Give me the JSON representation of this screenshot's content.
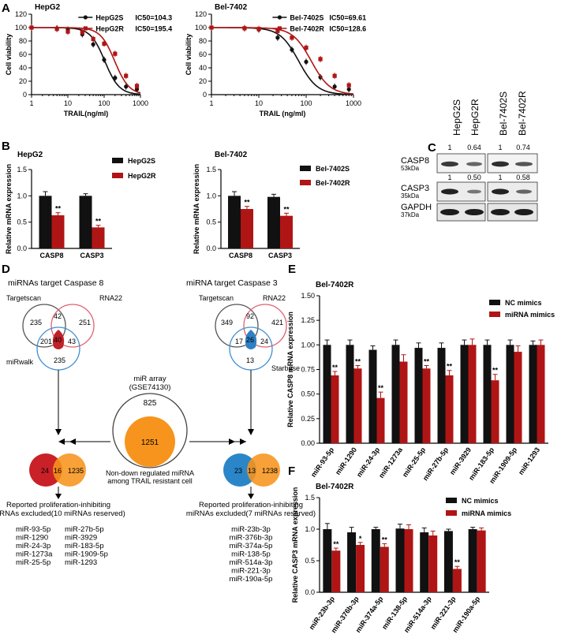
{
  "panels": {
    "A": "A",
    "B": "B",
    "C": "C",
    "D": "D",
    "E": "E",
    "F": "F"
  },
  "colors": {
    "black": "#111111",
    "red": "#b01515",
    "venn_red": "#c0202a",
    "venn_blue": "#2f7fc4",
    "orange": "#f7941d",
    "dark_red_venn": "#c92127",
    "blue_venn": "#2a86c8"
  },
  "chart_data": [
    {
      "id": "A1",
      "type": "line",
      "title": "HepG2",
      "xlabel": "TRAIL(ng/ml)",
      "ylabel": "Cell viability",
      "xscale": "log",
      "xlim": [
        1,
        1000
      ],
      "ylim": [
        0,
        120
      ],
      "xticks": [
        "1",
        "10",
        "100",
        "1000"
      ],
      "yticks": [
        "0",
        "20",
        "40",
        "60",
        "80",
        "100",
        "120"
      ],
      "series": [
        {
          "name": "HepG2S",
          "label": "IC50=104.3",
          "ic50": 104.3,
          "color": "#111111",
          "x": [
            1,
            5,
            10,
            25,
            50,
            100,
            200,
            400,
            800
          ],
          "y": [
            100,
            99,
            97,
            90,
            75,
            52,
            25,
            12,
            8
          ]
        },
        {
          "name": "HepG2R",
          "label": "IC50=195.4",
          "ic50": 195.4,
          "color": "#b01515",
          "x": [
            1,
            5,
            10,
            25,
            50,
            100,
            200,
            400,
            800
          ],
          "y": [
            100,
            98,
            94,
            93,
            83,
            76,
            61,
            28,
            13
          ]
        }
      ]
    },
    {
      "id": "A2",
      "type": "line",
      "title": "Bel-7402",
      "xlabel": "TRAIL (ng/ml)",
      "ylabel": "Cell viability",
      "xscale": "log",
      "xlim": [
        1,
        1000
      ],
      "ylim": [
        0,
        120
      ],
      "xticks": [
        "1",
        "10",
        "100",
        "1000"
      ],
      "yticks": [
        "0",
        "20",
        "40",
        "60",
        "80",
        "100",
        "120"
      ],
      "series": [
        {
          "name": "Bel-7402S",
          "label": "IC50=69.61",
          "ic50": 69.61,
          "color": "#111111",
          "x": [
            1,
            5,
            10,
            25,
            50,
            100,
            200,
            400,
            800
          ],
          "y": [
            100,
            99,
            97,
            85,
            67,
            49,
            26,
            12,
            8
          ]
        },
        {
          "name": "Bel-7402R",
          "label": "IC50=128.6",
          "ic50": 128.6,
          "color": "#b01515",
          "x": [
            1,
            5,
            10,
            25,
            50,
            100,
            200,
            400,
            800
          ],
          "y": [
            100,
            99,
            98,
            95,
            85,
            70,
            53,
            28,
            14
          ]
        }
      ]
    },
    {
      "id": "B1",
      "type": "bar",
      "title": "HepG2",
      "ylabel": "Relative mRNA expression",
      "ylim": [
        0,
        1.5
      ],
      "yticks": [
        "0.0",
        "0.5",
        "1.0",
        "1.5"
      ],
      "categories": [
        "CASP8",
        "CASP3"
      ],
      "series": [
        {
          "name": "HepG2S",
          "color": "#111111",
          "values": [
            1.0,
            1.0
          ],
          "err": [
            0.08,
            0.04
          ]
        },
        {
          "name": "HepG2R",
          "color": "#b01515",
          "values": [
            0.63,
            0.4
          ],
          "err": [
            0.05,
            0.04
          ]
        }
      ],
      "sig": [
        "**",
        "**"
      ]
    },
    {
      "id": "B2",
      "type": "bar",
      "title": "Bel-7402",
      "ylabel": "Relative mRNA expression",
      "ylim": [
        0,
        1.5
      ],
      "yticks": [
        "0.0",
        "0.5",
        "1.0",
        "1.5"
      ],
      "categories": [
        "CASP8",
        "CASP3"
      ],
      "series": [
        {
          "name": "Bel-7402S",
          "color": "#111111",
          "values": [
            1.0,
            0.98
          ],
          "err": [
            0.08,
            0.05
          ]
        },
        {
          "name": "Bel-7402R",
          "color": "#b01515",
          "values": [
            0.75,
            0.62
          ],
          "err": [
            0.05,
            0.05
          ]
        }
      ],
      "sig": [
        "**",
        "**"
      ]
    },
    {
      "id": "E",
      "type": "bar",
      "title": "Bel-7402R",
      "ylabel": "Relative CASP8 mRNA expression",
      "ylim": [
        0,
        1.5
      ],
      "yticks": [
        "0.00",
        "0.25",
        "0.50",
        "0.75",
        "1.00",
        "1.25",
        "1.50"
      ],
      "categories": [
        "miR-93-5p",
        "miR-1290",
        "miR-24-3p",
        "miR-1273a",
        "miR-25-5p",
        "miR-27b-5p",
        "miR-3929",
        "miR-183-5p",
        "miR-1909-5p",
        "miR-1293"
      ],
      "series": [
        {
          "name": "NC mimics",
          "color": "#111111",
          "values": [
            1.0,
            1.0,
            0.95,
            1.0,
            0.97,
            0.97,
            1.0,
            1.0,
            1.0,
            1.0
          ],
          "err": [
            0.05,
            0.05,
            0.04,
            0.05,
            0.05,
            0.05,
            0.05,
            0.05,
            0.05,
            0.04
          ]
        },
        {
          "name": "miRNA mimics",
          "color": "#b01515",
          "values": [
            0.69,
            0.76,
            0.46,
            0.83,
            0.76,
            0.69,
            1.0,
            0.64,
            0.93,
            1.0
          ],
          "err": [
            0.04,
            0.03,
            0.06,
            0.07,
            0.03,
            0.05,
            0.06,
            0.06,
            0.06,
            0.05
          ]
        }
      ],
      "sig": [
        "**",
        "**",
        "**",
        "",
        "**",
        "**",
        "",
        "**",
        "",
        ""
      ]
    },
    {
      "id": "F",
      "type": "bar",
      "title": "Bel-7402R",
      "ylabel": "Relative CASP3 mRNA expression",
      "ylim": [
        0,
        1.5
      ],
      "yticks": [
        "0.0",
        "0.5",
        "1.0",
        "1.5"
      ],
      "categories": [
        "miR-23b-3p",
        "miR-376b-3p",
        "miR-374a-5p",
        "miR-138-5p",
        "miR-514a-3p",
        "miR-221-3p",
        "miR-190a-5p"
      ],
      "series": [
        {
          "name": "NC mimics",
          "color": "#111111",
          "values": [
            1.0,
            0.95,
            1.0,
            1.01,
            0.95,
            0.97,
            1.0
          ],
          "err": [
            0.09,
            0.08,
            0.03,
            0.07,
            0.07,
            0.03,
            0.03
          ]
        },
        {
          "name": "miRNA mimics",
          "color": "#b01515",
          "values": [
            0.66,
            0.75,
            0.72,
            1.0,
            0.9,
            0.37,
            0.98
          ],
          "err": [
            0.04,
            0.04,
            0.05,
            0.07,
            0.07,
            0.04,
            0.04
          ]
        }
      ],
      "sig": [
        "**",
        "*",
        "**",
        "",
        "",
        "**",
        ""
      ]
    }
  ],
  "blot": {
    "cols": [
      "HepG2S",
      "HepG2R",
      "Bel-7402S",
      "Bel-7402R"
    ],
    "casp8_ratio": [
      "1",
      "0.64",
      "1",
      "0.74"
    ],
    "casp3_ratio": [
      "1",
      "0.50",
      "1",
      "0.58"
    ],
    "rows": [
      {
        "name": "CASP8",
        "kda": "53kDa"
      },
      {
        "name": "CASP3",
        "kda": "35kDa"
      },
      {
        "name": "GAPDH",
        "kda": "37kDa"
      }
    ]
  },
  "venn": {
    "left_title": "miRNAs target Caspase 8",
    "right_title": "miRNA target Caspase 3",
    "l": {
      "targetscan": "Targetscan",
      "rna22": "RNA22",
      "mirwalk": "miRwalk",
      "n_ts": "235",
      "n_ts_rna": "42",
      "n_rna": "251",
      "n_ts_mw": "201",
      "n_all": "40",
      "n_rna_mw": "43",
      "n_mw": "235"
    },
    "r": {
      "targetscan": "Targetscan",
      "rna22": "RNA22",
      "starbase": "Starbase",
      "n_ts": "349",
      "n_ts_rna": "92",
      "n_rna": "421",
      "n_ts_sb": "17",
      "n_all": "26",
      "n_rna_sb": "24",
      "n_sb": "13"
    },
    "array_title": "miR array",
    "array_sub": "(GSE74130)",
    "array_outer": "825",
    "array_inner": "1251",
    "array_caption1": "Non-down regulated miRNA",
    "array_caption2": "among TRAIL resistant cell",
    "bl": {
      "a": "24",
      "ab": "16",
      "b": "1235"
    },
    "br": {
      "a": "23",
      "ab": "13",
      "b": "1238"
    },
    "left_caption1": "Reported proliferation-inhibiting",
    "left_caption2": "miRNAs excluded(10 miRNAs reserved)",
    "right_caption1": "Reported proliferation-inhibiting",
    "right_caption2": "miRNAs excluded(7 miRNAs reserved)",
    "left_list_a": [
      "miR-93-5p",
      "miR-1290",
      "miR-24-3p",
      "miR-1273a",
      "miR-25-5p"
    ],
    "left_list_b": [
      "miR-27b-5p",
      "miR-3929",
      "miR-183-5p",
      "miR-1909-5p",
      "miR-1293"
    ],
    "right_list": [
      "miR-23b-3p",
      "miR-376b-3p",
      "miR-374a-5p",
      "miR-138-5p",
      "miR-514a-3p",
      "miR-221-3p",
      "miR-190a-5p"
    ]
  }
}
